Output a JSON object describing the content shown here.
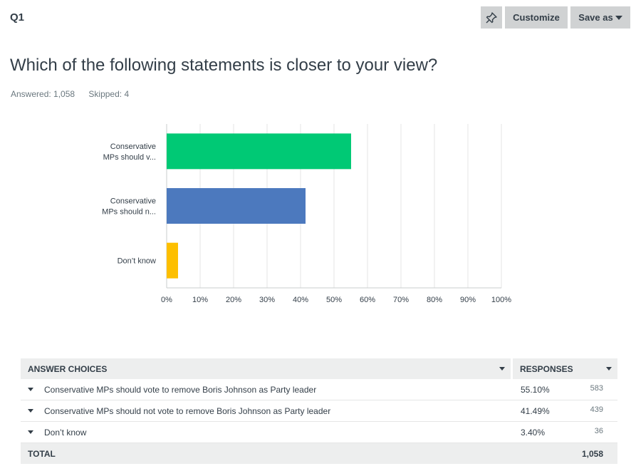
{
  "header": {
    "question_label": "Q1",
    "customize_label": "Customize",
    "save_as_label": "Save as"
  },
  "question": {
    "title": "Which of the following statements is closer to your view?",
    "answered": "Answered: 1,058",
    "skipped": "Skipped: 4"
  },
  "colors": {
    "bar1": "#00c975",
    "bar2": "#4c79be",
    "bar3": "#fdbf00"
  },
  "chart_data": {
    "type": "bar",
    "orientation": "horizontal",
    "categories": [
      [
        "Conservative",
        "MPs should v..."
      ],
      [
        "Conservative",
        "MPs should n..."
      ],
      [
        "Don’t know"
      ]
    ],
    "values": [
      55.1,
      41.49,
      3.4
    ],
    "xticks": [
      "0%",
      "10%",
      "20%",
      "30%",
      "40%",
      "50%",
      "60%",
      "70%",
      "80%",
      "90%",
      "100%"
    ],
    "xlim": [
      0,
      100
    ],
    "grid": true
  },
  "table": {
    "headers": {
      "choices": "ANSWER CHOICES",
      "responses": "RESPONSES"
    },
    "rows": [
      {
        "choice": "Conservative MPs should vote to remove Boris Johnson as Party leader",
        "pct": "55.10%",
        "count": "583"
      },
      {
        "choice": "Conservative MPs should not vote to remove Boris Johnson as Party leader",
        "pct": "41.49%",
        "count": "439"
      },
      {
        "choice": "Don’t know",
        "pct": "3.40%",
        "count": "36"
      }
    ],
    "total_label": "TOTAL",
    "total_value": "1,058"
  }
}
